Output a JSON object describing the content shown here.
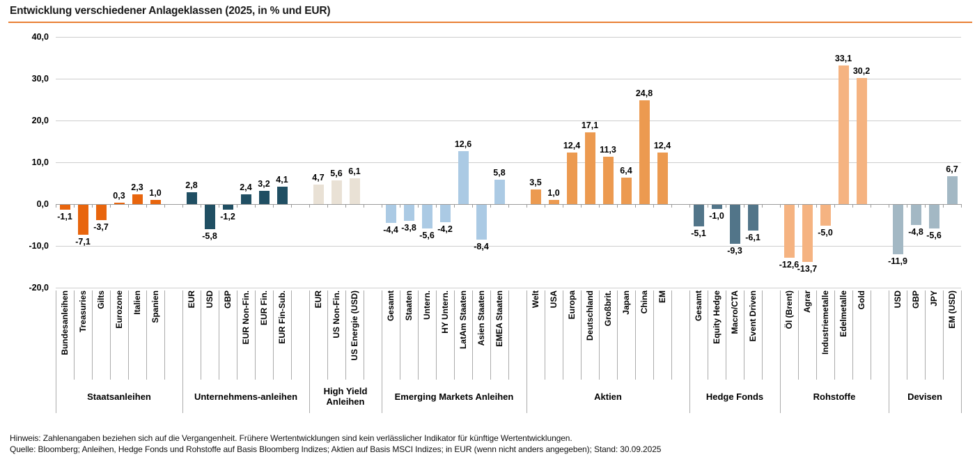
{
  "title": "Entwicklung verschiedener Anlageklassen (2025, in % und EUR)",
  "accent_color": "#E87F33",
  "footer": {
    "note": "Hinweis: Zahlenangaben beziehen sich auf die Vergangenheit. Frühere Wertentwicklungen sind kein verlässlicher Indikator für künftige Wertentwicklungen.",
    "source": "Quelle: Bloomberg; Anleihen, Hedge Fonds und Rohstoffe auf Basis Bloomberg Indizes; Aktien auf Basis MSCI Indizes; in EUR (wenn nicht anders angegeben); Stand: 30.09.2025"
  },
  "chart_data": {
    "type": "bar",
    "ylim": [
      -20,
      40
    ],
    "grid": true,
    "yticks": [
      {
        "value": 40,
        "label": "40,0"
      },
      {
        "value": 30,
        "label": "30,0"
      },
      {
        "value": 20,
        "label": "20,0"
      },
      {
        "value": 10,
        "label": "10,0"
      },
      {
        "value": 0,
        "label": "0,0"
      },
      {
        "value": -10,
        "label": "-10,0"
      },
      {
        "value": -20,
        "label": "-20,0"
      }
    ],
    "groups": [
      {
        "name": "Staatsanleihen",
        "color": "#E8650D",
        "items": [
          {
            "label": "Bundesanleihen",
            "value": -1.1,
            "display": "-1,1"
          },
          {
            "label": "Treasuries",
            "value": -7.1,
            "display": "-7,1"
          },
          {
            "label": "Gilts",
            "value": -3.7,
            "display": "-3,7"
          },
          {
            "label": "Eurozone",
            "value": 0.3,
            "display": "0,3"
          },
          {
            "label": "Italien",
            "value": 2.3,
            "display": "2,3"
          },
          {
            "label": "Spanien",
            "value": 1.0,
            "display": "1,0"
          }
        ]
      },
      {
        "name": "Unternehmens-anleihen",
        "color": "#204F63",
        "items": [
          {
            "label": "EUR",
            "value": 2.8,
            "display": "2,8"
          },
          {
            "label": "USD",
            "value": -5.8,
            "display": "-5,8"
          },
          {
            "label": "GBP",
            "value": -1.2,
            "display": "-1,2"
          },
          {
            "label": "EUR Non-Fin.",
            "value": 2.4,
            "display": "2,4"
          },
          {
            "label": "EUR Fin.",
            "value": 3.2,
            "display": "3,2"
          },
          {
            "label": "EUR Fin-Sub.",
            "value": 4.1,
            "display": "4,1"
          }
        ]
      },
      {
        "name": "High Yield Anleihen",
        "color": "#E9E1D5",
        "items": [
          {
            "label": "EUR",
            "value": 4.7,
            "display": "4,7"
          },
          {
            "label": "US Non-Fin.",
            "value": 5.6,
            "display": "5,6"
          },
          {
            "label": "US Energie (USD)",
            "value": 6.1,
            "display": "6,1"
          }
        ]
      },
      {
        "name": "Emerging Markets Anleihen",
        "color": "#ABCAE4",
        "items": [
          {
            "label": "Gesamt",
            "value": -4.4,
            "display": "-4,4"
          },
          {
            "label": "Staaten",
            "value": -3.8,
            "display": "-3,8"
          },
          {
            "label": "Untern.",
            "value": -5.6,
            "display": "-5,6"
          },
          {
            "label": "HY Untern.",
            "value": -4.2,
            "display": "-4,2"
          },
          {
            "label": "LatAm Staaten",
            "value": 12.6,
            "display": "12,6"
          },
          {
            "label": "Asien Staaten",
            "value": -8.4,
            "display": "-8,4"
          },
          {
            "label": "EMEA Staaten",
            "value": 5.8,
            "display": "5,8"
          }
        ]
      },
      {
        "name": "Aktien",
        "color": "#EC9A50",
        "items": [
          {
            "label": "Welt",
            "value": 3.5,
            "display": "3,5"
          },
          {
            "label": "USA",
            "value": 1.0,
            "display": "1,0"
          },
          {
            "label": "Europa",
            "value": 12.4,
            "display": "12,4"
          },
          {
            "label": "Deutschland",
            "value": 17.1,
            "display": "17,1"
          },
          {
            "label": "Großbrit.",
            "value": 11.3,
            "display": "11,3"
          },
          {
            "label": "Japan",
            "value": 6.4,
            "display": "6,4"
          },
          {
            "label": "China",
            "value": 24.8,
            "display": "24,8"
          },
          {
            "label": "EM",
            "value": 12.4,
            "display": "12,4"
          }
        ]
      },
      {
        "name": "Hedge Fonds",
        "color": "#527589",
        "items": [
          {
            "label": "Gesamt",
            "value": -5.1,
            "display": "-5,1"
          },
          {
            "label": "Equity Hedge",
            "value": -1.0,
            "display": "-1,0"
          },
          {
            "label": "Macro/CTA",
            "value": -9.3,
            "display": "-9,3"
          },
          {
            "label": "Event Driven",
            "value": -6.1,
            "display": "-6,1"
          }
        ]
      },
      {
        "name": "Rohstoffe",
        "color": "#F5B381",
        "items": [
          {
            "label": "Öl (Brent)",
            "value": -12.6,
            "display": "-12,6"
          },
          {
            "label": "Agrar",
            "value": -13.7,
            "display": "-13,7"
          },
          {
            "label": "Industriemetalle",
            "value": -5.0,
            "display": "-5,0"
          },
          {
            "label": "Edelmetalle",
            "value": 33.1,
            "display": "33,1"
          },
          {
            "label": "Gold",
            "value": 30.2,
            "display": "30,2"
          }
        ]
      },
      {
        "name": "Devisen",
        "color": "#A3B8C4",
        "items": [
          {
            "label": "USD",
            "value": -11.9,
            "display": "-11,9"
          },
          {
            "label": "GBP",
            "value": -4.8,
            "display": "-4,8"
          },
          {
            "label": "JPY",
            "value": -5.6,
            "display": "-5,6"
          },
          {
            "label": "EM (USD)",
            "value": 6.7,
            "display": "6,7"
          }
        ]
      }
    ]
  }
}
